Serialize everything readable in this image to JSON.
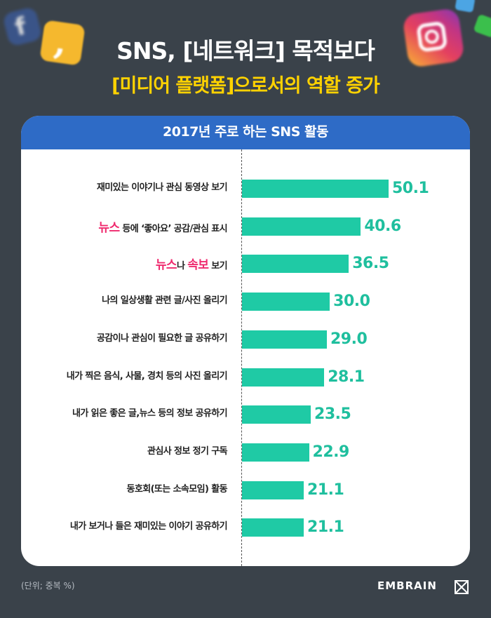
{
  "header": {
    "title_line1": "SNS, [네트워크] 목적보다",
    "title_line2": "[미디어 플랫폼]으로서의 역할 증가"
  },
  "chart_data": {
    "type": "bar",
    "orientation": "horizontal",
    "title": "2017년 주로 하는 SNS 활동",
    "categories": [
      "재미있는 이야기나 관심 동영상 보기",
      "뉴스 등에 ‘좋아요’ 공감/관심 표시",
      "뉴스나 속보 보기",
      "나의 일상생활 관련 글/사진 올리기",
      "공감이나 관심이 필요한 글 공유하기",
      "내가 찍은 음식, 사물, 경치 등의 사진 올리기",
      "내가 읽은 좋은 글,뉴스 등의 정보 공유하기",
      "관심사 정보 정기 구독",
      "동호회(또는 소속모임) 활동",
      "내가 보거나 들은 재미있는 이야기 공유하기"
    ],
    "label_parts": [
      [
        {
          "t": "재미있는 이야기나 관심 동영상 보기",
          "hl": false
        }
      ],
      [
        {
          "t": "뉴스",
          "hl": true
        },
        {
          "t": " 등에 ‘좋아요’ 공감/관심 표시",
          "hl": false
        }
      ],
      [
        {
          "t": "뉴스",
          "hl": true
        },
        {
          "t": "나 ",
          "hl": false
        },
        {
          "t": "속보",
          "hl": true
        },
        {
          "t": " 보기",
          "hl": false
        }
      ],
      [
        {
          "t": "나의 일상생활 관련 글/사진 올리기",
          "hl": false
        }
      ],
      [
        {
          "t": "공감이나 관심이 필요한 글 공유하기",
          "hl": false
        }
      ],
      [
        {
          "t": "내가 찍은 음식, 사물, 경치 등의 사진 올리기",
          "hl": false
        }
      ],
      [
        {
          "t": "내가 읽은 좋은 글,뉴스 등의 정보 공유하기",
          "hl": false
        }
      ],
      [
        {
          "t": "관심사 정보 정기 구독",
          "hl": false
        }
      ],
      [
        {
          "t": "동호회(또는 소속모임) 활동",
          "hl": false
        }
      ],
      [
        {
          "t": "내가 보거나 들은 재미있는 이야기 공유하기",
          "hl": false
        }
      ]
    ],
    "values": [
      50.1,
      40.6,
      36.5,
      30.0,
      29.0,
      28.1,
      23.5,
      22.9,
      21.1,
      21.1
    ],
    "value_labels": [
      "50.1",
      "40.6",
      "36.5",
      "30.0",
      "29.0",
      "28.1",
      "23.5",
      "22.9",
      "21.1",
      "21.1"
    ],
    "xlim": [
      0,
      100
    ],
    "grid": false,
    "colors": {
      "bar": "#1fcaa5",
      "value_text": "#1fbf9e",
      "highlight": "#ef2a6e",
      "header": "#2e6bc6"
    }
  },
  "footer": {
    "unit_note": "(단위; 중복 %)",
    "brand": "EMBRAIN"
  }
}
